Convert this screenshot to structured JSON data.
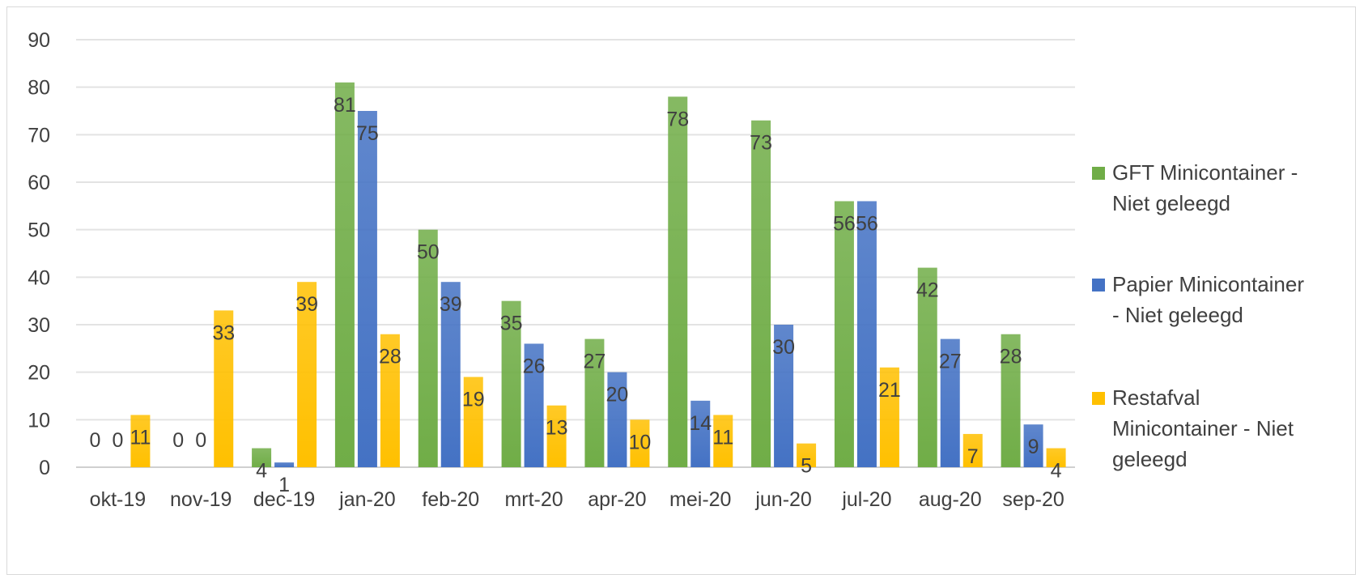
{
  "chart_data": {
    "type": "bar",
    "title": "",
    "xlabel": "",
    "ylabel": "",
    "ylim": [
      0,
      90
    ],
    "yticks": [
      0,
      10,
      20,
      30,
      40,
      50,
      60,
      70,
      80,
      90
    ],
    "grid": true,
    "legend_position": "right",
    "categories": [
      "okt-19",
      "nov-19",
      "dec-19",
      "jan-20",
      "feb-20",
      "mrt-20",
      "apr-20",
      "mei-20",
      "jun-20",
      "jul-20",
      "aug-20",
      "sep-20"
    ],
    "series": [
      {
        "name": "GFT Minicontainer - Niet geleegd",
        "legend_lines": [
          "GFT Minicontainer -",
          "Niet geleegd"
        ],
        "color": "#70AD47",
        "values": [
          0,
          0,
          4,
          81,
          50,
          35,
          27,
          78,
          73,
          56,
          42,
          28
        ]
      },
      {
        "name": "Papier Minicontainer - Niet geleegd",
        "legend_lines": [
          "Papier Minicontainer",
          "- Niet geleegd"
        ],
        "color": "#4472C4",
        "values": [
          0,
          0,
          1,
          75,
          39,
          26,
          20,
          14,
          30,
          56,
          27,
          9
        ]
      },
      {
        "name": "Restafval Minicontainer - Niet geleegd",
        "legend_lines": [
          "Restafval",
          "Minicontainer - Niet",
          "geleegd"
        ],
        "color": "#FFC000",
        "values": [
          11,
          33,
          39,
          28,
          19,
          13,
          10,
          11,
          5,
          21,
          7,
          4
        ]
      }
    ]
  }
}
